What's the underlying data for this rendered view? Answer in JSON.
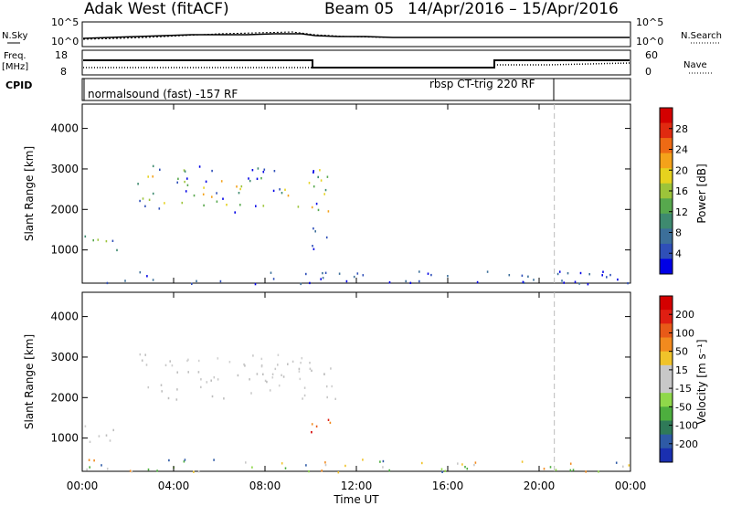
{
  "header": {
    "station": "Adak West (fitACF)",
    "beam": "Beam 05",
    "date_range": "14/Apr/2016 – 15/Apr/2016"
  },
  "top_panels": {
    "nsky_label": "N.Sky",
    "nsearch_label": "N.Search",
    "freq_label": "Freq.",
    "freq_unit": "[MHz]",
    "nave_label": "Nave",
    "cpid_label": "CPID",
    "nsky_ticks": [
      "10^5",
      "10^0"
    ],
    "nsearch_ticks": [
      "10^5",
      "10^0"
    ],
    "freq_ticks": [
      "18",
      "8"
    ],
    "nave_ticks": [
      "60",
      "0"
    ],
    "cpid_mode1": "normalsound (fast) -157 RF",
    "cpid_mode2": "rbsp CT-trig 220 RF"
  },
  "chart_data": [
    {
      "type": "heatmap",
      "panel": "power",
      "ylabel": "Slant Range [km]",
      "xlabel": "Time UT",
      "x_ticks": [
        "00:00",
        "04:00",
        "08:00",
        "12:00",
        "16:00",
        "20:00",
        "00:00"
      ],
      "x_range_hours": [
        0,
        24
      ],
      "y_ticks": [
        1000,
        2000,
        3000,
        4000
      ],
      "ylim_km": [
        180,
        4600
      ],
      "colorbar_label": "Power [dB]",
      "colorbar_ticks": [
        "28",
        "24",
        "20",
        "16",
        "12",
        "8",
        "4"
      ],
      "colorbar_colors": [
        "#0000e6",
        "#2f4fb8",
        "#3c6f9a",
        "#3e8a6f",
        "#57a84d",
        "#9cc43a",
        "#e6d21e",
        "#f4a21a",
        "#ee6a14",
        "#e02a10",
        "#d40000"
      ],
      "marker_time": "20:40",
      "scatter_regions": [
        {
          "t0": 0.1,
          "t1": 1.8,
          "r0": 900,
          "r1": 1400,
          "level": "mid"
        },
        {
          "t0": 2.4,
          "t1": 11.1,
          "r0": 1950,
          "r1": 3100,
          "level": "mixed"
        },
        {
          "t0": 9.9,
          "t1": 11.1,
          "r0": 1000,
          "r1": 1600,
          "level": "low"
        },
        {
          "t0": 0.0,
          "t1": 24.0,
          "r0": 180,
          "r1": 500,
          "level": "low"
        }
      ]
    },
    {
      "type": "heatmap",
      "panel": "velocity",
      "ylabel": "Slant Range [km]",
      "xlabel": "Time UT",
      "x_ticks": [
        "00:00",
        "04:00",
        "08:00",
        "12:00",
        "16:00",
        "20:00",
        "00:00"
      ],
      "x_range_hours": [
        0,
        24
      ],
      "y_ticks": [
        1000,
        2000,
        3000,
        4000
      ],
      "ylim_km": [
        180,
        4600
      ],
      "colorbar_label": "Velocity [m s⁻¹]",
      "colorbar_ticks": [
        "200",
        "100",
        "50",
        "15",
        "-15",
        "-50",
        "-100",
        "-200"
      ],
      "colorbar_colors": [
        "#1a2fb0",
        "#2e5aa6",
        "#2f7a58",
        "#4dae3e",
        "#8fd84a",
        "#c8c8c8",
        "#c8c8c8",
        "#f0c32a",
        "#f28a1e",
        "#e85a18",
        "#e01e12",
        "#d40000"
      ],
      "marker_time": "20:40",
      "scatter_regions": [
        {
          "t0": 0.1,
          "t1": 1.8,
          "r0": 900,
          "r1": 1400,
          "level": "gray"
        },
        {
          "t0": 2.4,
          "t1": 11.1,
          "r0": 1950,
          "r1": 3100,
          "level": "gray"
        },
        {
          "t0": 9.9,
          "t1": 11.1,
          "r0": 1000,
          "r1": 1600,
          "level": "red"
        },
        {
          "t0": 0.0,
          "t1": 24.0,
          "r0": 180,
          "r1": 500,
          "level": "mixed"
        }
      ]
    }
  ]
}
